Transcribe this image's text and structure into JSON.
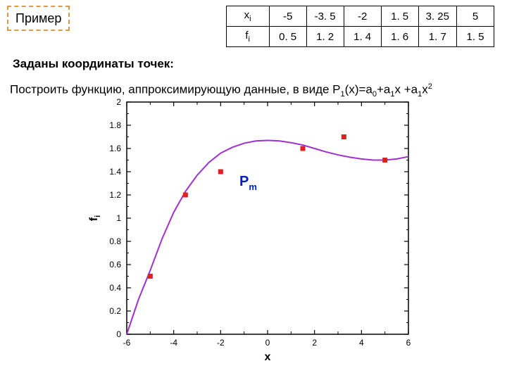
{
  "example_label": "Пример",
  "subtitle": "Заданы координаты точек:",
  "task_prefix": "Построить функцию, аппроксимирующую данные, в виде P",
  "task_sub1": "1",
  "task_mid1": "(x)=a",
  "task_sub2": "0",
  "task_mid2": "+a",
  "task_sub3": "1",
  "task_mid3": "x +a",
  "task_sub4": "1",
  "task_mid4": "x",
  "task_sup": "2",
  "table": {
    "row1_header": "x",
    "row1_header_sub": "i",
    "row1": [
      "-5",
      "-3. 5",
      "-2",
      "1. 5",
      "3. 25",
      "5"
    ],
    "row2_header": "f",
    "row2_header_sub": "i",
    "row2": [
      "0. 5",
      "1. 2",
      "1. 4",
      "1. 6",
      "1. 7",
      "1. 5"
    ]
  },
  "chart": {
    "type": "scatter+line",
    "xlabel": "x",
    "ylabel": "f",
    "ylabel_sub": "i",
    "series_label": "P",
    "series_label_sub": "m",
    "xlim": [
      -6,
      6
    ],
    "ylim": [
      0,
      2
    ],
    "xticks": [
      -6,
      -4,
      -2,
      0,
      2,
      4,
      6
    ],
    "yticks": [
      0,
      0.2,
      0.4,
      0.6,
      0.8,
      1,
      1.2,
      1.4,
      1.6,
      1.8,
      2
    ],
    "scatter_x": [
      -5,
      -3.5,
      -2,
      1.5,
      3.25,
      5
    ],
    "scatter_y": [
      0.5,
      1.2,
      1.4,
      1.6,
      1.7,
      1.5
    ],
    "curve_points": [
      [
        -6,
        0
      ],
      [
        -5.5,
        0.3
      ],
      [
        -5,
        0.55
      ],
      [
        -4.5,
        0.82
      ],
      [
        -4,
        1.05
      ],
      [
        -3.5,
        1.23
      ],
      [
        -3,
        1.37
      ],
      [
        -2.5,
        1.48
      ],
      [
        -2,
        1.56
      ],
      [
        -1.5,
        1.61
      ],
      [
        -1,
        1.645
      ],
      [
        -0.5,
        1.665
      ],
      [
        0,
        1.67
      ],
      [
        0.5,
        1.665
      ],
      [
        1,
        1.65
      ],
      [
        1.5,
        1.63
      ],
      [
        2,
        1.6
      ],
      [
        2.5,
        1.57
      ],
      [
        3,
        1.545
      ],
      [
        3.5,
        1.525
      ],
      [
        4,
        1.51
      ],
      [
        4.5,
        1.5
      ],
      [
        5,
        1.5
      ],
      [
        5.5,
        1.51
      ],
      [
        6,
        1.53
      ]
    ],
    "colors": {
      "axis": "#000000",
      "grid": "#000000",
      "curve": "#a030d0",
      "marker": "#e02020",
      "label_text": "#0020c0",
      "background": "#ffffff"
    },
    "marker_size": 7,
    "curve_width": 2,
    "axis_fontsize": 13,
    "label_fontsize": 16,
    "tick_fontsize": 12
  }
}
